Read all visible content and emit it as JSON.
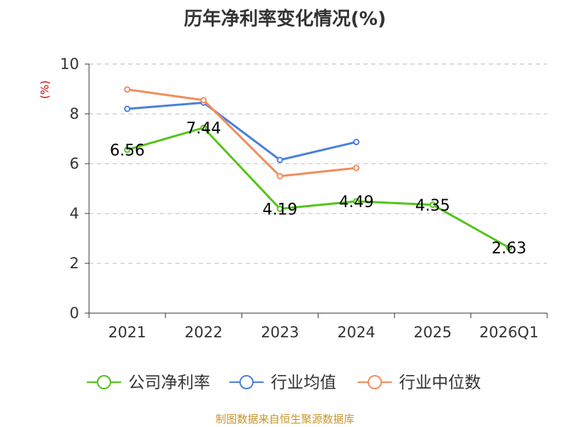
{
  "chart_data": {
    "type": "line",
    "title": "历年净利率变化情况(%)",
    "ylabel": "(%)",
    "xlabel": "",
    "categories": [
      "2021",
      "2022",
      "2023",
      "2024",
      "2025",
      "2026Q1"
    ],
    "ylim": [
      0,
      10
    ],
    "yticks": [
      0,
      2,
      4,
      6,
      8,
      10
    ],
    "grid": true,
    "legend_position": "bottom",
    "series": [
      {
        "name": "公司净利率",
        "color": "#52c41a",
        "values": [
          6.56,
          7.44,
          4.19,
          4.49,
          4.35,
          2.63
        ],
        "labels": [
          "6.56",
          "7.44",
          "4.19",
          "4.49",
          "4.35",
          "2.63"
        ]
      },
      {
        "name": "行业均值",
        "color": "#4a7fdc",
        "values": [
          8.2,
          8.45,
          6.15,
          6.87,
          null,
          null
        ]
      },
      {
        "name": "行业中位数",
        "color": "#f28c5a",
        "values": [
          8.98,
          8.55,
          5.5,
          5.83,
          null,
          null
        ]
      }
    ]
  },
  "source": "制图数据来自恒生聚源数据库"
}
